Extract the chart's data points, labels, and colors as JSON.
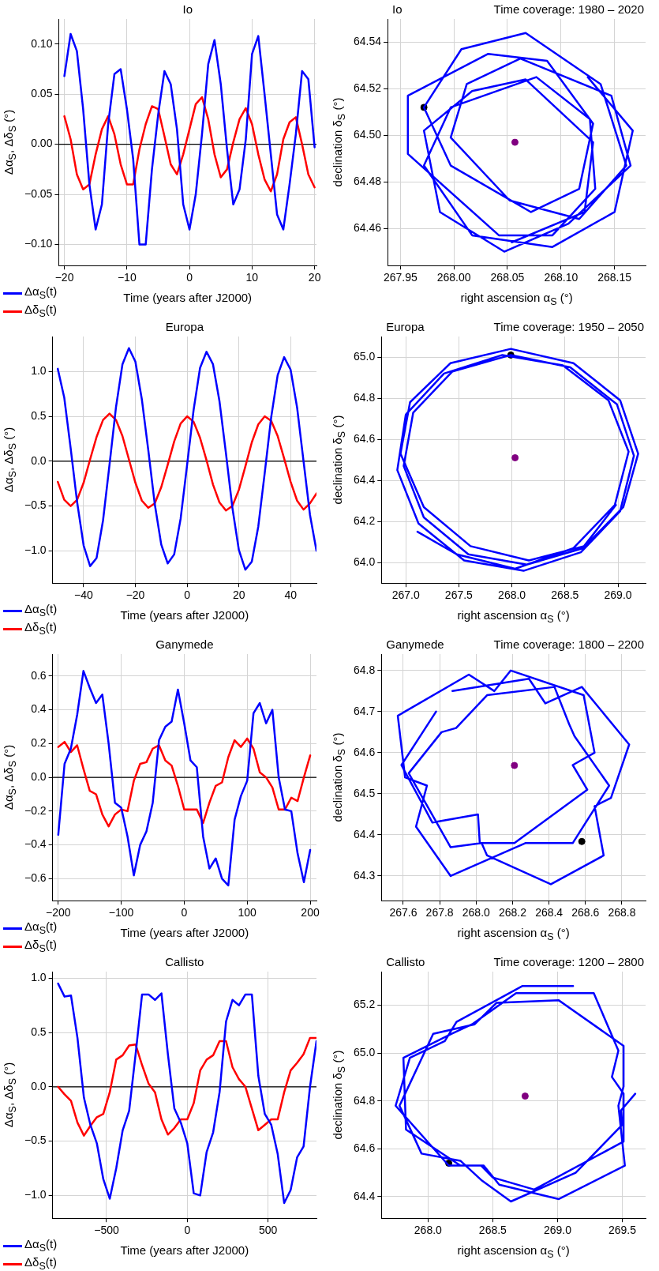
{
  "chart_data": [
    {
      "type": "line",
      "title": "Io",
      "xlabel": "Time (years after J2000)",
      "ylabel": "Δα$_{S}$, Δδ$_{S}$ (°)",
      "legend": "bottom left",
      "grid": true,
      "xlim": [
        -20.9,
        20.3
      ],
      "ylim": [
        -0.121,
        0.125
      ],
      "xticks": [
        {
          "value": -20,
          "label": "−20"
        },
        {
          "value": -10,
          "label": "−10"
        },
        0,
        10,
        20
      ],
      "yticks": [
        {
          "value": -0.1,
          "label": "−0.10"
        },
        {
          "value": -0.05,
          "label": "−0.05"
        },
        {
          "value": 0,
          "label": "0.00"
        },
        {
          "value": 0.05,
          "label": "0.05"
        },
        {
          "value": 0.1,
          "label": "0.10"
        }
      ],
      "ref_lines": [
        {
          "axis": "y",
          "value": 0,
          "color": "#000000"
        }
      ],
      "x": [
        -20,
        -19,
        -18,
        -17,
        -16,
        -15,
        -14,
        -13,
        -12,
        -11,
        -10,
        -9,
        -8,
        -7,
        -6,
        -5,
        -4,
        -3,
        -2,
        -1,
        0,
        1,
        2,
        3,
        4,
        5,
        6,
        7,
        8,
        9,
        10,
        11,
        12,
        13,
        14,
        15,
        16,
        17,
        18,
        19,
        20
      ],
      "series": [
        {
          "name": "Δα$_{S}$(t)",
          "color": "#0000ff",
          "values": [
            0.068,
            0.11,
            0.093,
            0.035,
            -0.04,
            -0.085,
            -0.06,
            0.02,
            0.07,
            0.075,
            0.035,
            -0.015,
            -0.1,
            -0.1,
            -0.025,
            0.03,
            0.073,
            0.06,
            0.015,
            -0.06,
            -0.085,
            -0.05,
            0.01,
            0.08,
            0.104,
            0.06,
            -0.005,
            -0.06,
            -0.045,
            0.005,
            0.09,
            0.108,
            0.05,
            -0.01,
            -0.07,
            -0.085,
            -0.04,
            0.01,
            0.073,
            0.065,
            -0.003
          ]
        },
        {
          "name": "Δδ$_{S}$(t)",
          "color": "#ff0000",
          "values": [
            0.028,
            0.005,
            -0.03,
            -0.045,
            -0.04,
            -0.01,
            0.015,
            0.028,
            0.01,
            -0.02,
            -0.04,
            -0.04,
            -0.005,
            0.02,
            0.038,
            0.035,
            0.008,
            -0.02,
            -0.03,
            -0.01,
            0.015,
            0.04,
            0.047,
            0.025,
            -0.01,
            -0.033,
            -0.025,
            0.002,
            0.025,
            0.036,
            0.02,
            -0.01,
            -0.035,
            -0.047,
            -0.03,
            0.005,
            0.022,
            0.027,
            0,
            -0.03,
            -0.043
          ]
        }
      ]
    },
    {
      "type": "line",
      "title": "Io",
      "xlabel": "right ascension α$_{S}$ (°)",
      "ylabel": "declination δ$_{S}$ (°)",
      "grid": true,
      "annotations": [
        "Time coverage: 1980 – 2020"
      ],
      "xlim": [
        267.938,
        268.179
      ],
      "ylim": [
        64.444,
        64.55
      ],
      "xticks": [
        267.95,
        {
          "value": 268,
          "label": "268.00"
        },
        268.05,
        {
          "value": 268.1,
          "label": "268.10"
        },
        268.15
      ],
      "yticks": [
        64.46,
        64.48,
        {
          "value": 64.5,
          "label": "64.50"
        },
        64.52,
        64.54
      ],
      "series": [
        {
          "color": "#0000ff",
          "x": [
            268.125,
            268.167,
            268.15,
            268.092,
            268.017,
            267.972,
            267.997,
            268.077,
            268.127,
            268.132,
            268.092,
            268.042,
            267.957,
            267.957,
            268.032,
            268.087,
            268.13,
            268.117,
            268.072,
            267.997,
            267.972,
            268.007,
            268.067,
            268.137,
            268.161,
            268.117,
            268.052,
            267.997,
            268.012,
            268.062,
            268.147,
            268.165,
            268.107,
            268.047,
            267.987,
            267.972,
            268.017,
            268.067,
            268.13,
            268.122,
            268.054
          ],
          "values": [
            64.525,
            64.502,
            64.467,
            64.452,
            64.457,
            64.487,
            64.512,
            64.525,
            64.507,
            64.477,
            64.457,
            64.457,
            64.492,
            64.517,
            64.535,
            64.532,
            64.505,
            64.477,
            64.467,
            64.487,
            64.512,
            64.537,
            64.544,
            64.522,
            64.487,
            64.464,
            64.472,
            64.499,
            64.522,
            64.533,
            64.517,
            64.487,
            64.462,
            64.45,
            64.467,
            64.502,
            64.519,
            64.524,
            64.497,
            64.467,
            64.454
          ]
        },
        {
          "type": "scatter",
          "marker": "circle",
          "color": "#000000",
          "x": [
            267.972
          ],
          "values": [
            64.512
          ]
        },
        {
          "type": "scatter",
          "marker": "circle",
          "color": "#800080",
          "x": [
            268.057
          ],
          "values": [
            64.497
          ]
        }
      ]
    },
    {
      "type": "line",
      "title": "Europa",
      "xlabel": "Time (years after J2000)",
      "ylabel": "Δα$_{S}$, Δδ$_{S}$ (°)",
      "legend": "bottom left",
      "grid": true,
      "xlim": [
        -52,
        50
      ],
      "ylim": [
        -1.36,
        1.39
      ],
      "xticks": [
        {
          "value": -40,
          "label": "−40"
        },
        {
          "value": -20,
          "label": "−20"
        },
        0,
        20,
        40
      ],
      "yticks": [
        {
          "value": -1,
          "label": "−1.0"
        },
        {
          "value": -0.5,
          "label": "−0.5"
        },
        {
          "value": 0,
          "label": "0.0"
        },
        0.5,
        {
          "value": 1,
          "label": "1.0"
        }
      ],
      "ref_lines": [
        {
          "axis": "y",
          "value": 0,
          "color": "#000000"
        }
      ],
      "x": [
        -50,
        -47.5,
        -45,
        -42.5,
        -40,
        -37.5,
        -35,
        -32.5,
        -30,
        -27.5,
        -25,
        -22.5,
        -20,
        -17.5,
        -15,
        -12.5,
        -10,
        -7.5,
        -5,
        -2.5,
        0,
        2.5,
        5,
        7.5,
        10,
        12.5,
        15,
        17.5,
        20,
        22.5,
        25,
        27.5,
        30,
        32.5,
        35,
        37.5,
        40,
        42.5,
        45,
        47.5,
        50
      ],
      "series": [
        {
          "name": "Δα$_{S}$(t)",
          "color": "#0000ff",
          "values": [
            1.03,
            0.71,
            0.14,
            -0.46,
            -0.94,
            -1.17,
            -1.08,
            -0.66,
            -0.04,
            0.6,
            1.08,
            1.26,
            1.11,
            0.69,
            0.12,
            -0.48,
            -0.93,
            -1.14,
            -1.04,
            -0.64,
            -0.04,
            0.57,
            1.04,
            1.22,
            1.08,
            0.67,
            0.09,
            -0.52,
            -0.99,
            -1.21,
            -1.12,
            -0.73,
            -0.13,
            0.49,
            0.96,
            1.16,
            1.02,
            0.6,
            0,
            -0.6,
            -1
          ]
        },
        {
          "name": "Δδ$_{S}$(t)",
          "color": "#ff0000",
          "values": [
            -0.23,
            -0.43,
            -0.5,
            -0.43,
            -0.24,
            0.02,
            0.27,
            0.46,
            0.53,
            0.46,
            0.28,
            0.02,
            -0.24,
            -0.44,
            -0.52,
            -0.47,
            -0.29,
            -0.04,
            0.22,
            0.42,
            0.5,
            0.44,
            0.26,
            0.01,
            -0.26,
            -0.46,
            -0.55,
            -0.5,
            -0.32,
            -0.06,
            0.21,
            0.41,
            0.5,
            0.45,
            0.28,
            0.03,
            -0.23,
            -0.44,
            -0.54,
            -0.47,
            -0.36
          ]
        }
      ]
    },
    {
      "type": "line",
      "title": "Europa",
      "xlabel": "right ascension α$_{S}$ (°)",
      "ylabel": "declination δ$_{S}$ (°)",
      "grid": true,
      "annotations": [
        "Time coverage: 1950 – 2050"
      ],
      "xlim": [
        266.77,
        269.26
      ],
      "ylim": [
        63.9,
        65.1
      ],
      "xticks": [
        {
          "value": 267,
          "label": "267.0"
        },
        267.5,
        {
          "value": 268,
          "label": "268.0"
        },
        268.5,
        {
          "value": 269,
          "label": "269.0"
        }
      ],
      "yticks": [
        {
          "value": 64,
          "label": "64.0"
        },
        64.2,
        64.4,
        64.6,
        64.8,
        {
          "value": 65,
          "label": "65.0"
        }
      ],
      "series": [
        {
          "color": "#0000ff",
          "x": [
            268.98,
            268.68,
            268.16,
            267.61,
            267.17,
            266.95,
            267.04,
            267.42,
            267.99,
            268.58,
            269.02,
            269.19,
            269.05,
            268.67,
            268.14,
            267.59,
            267.17,
            266.98,
            267.07,
            267.44,
            267.99,
            268.55,
            268.99,
            269.15,
            269.02,
            268.65,
            268.11,
            267.55,
            267.12,
            266.92,
            267,
            267.36,
            267.91,
            268.48,
            268.91,
            269.1,
            268.97,
            268.58,
            268.03,
            267.48,
            267.11
          ],
          "values": [
            64.28,
            64.08,
            64.01,
            64.08,
            64.27,
            64.53,
            64.78,
            64.97,
            65.04,
            64.97,
            64.79,
            64.53,
            64.27,
            64.07,
            63.99,
            64.04,
            64.22,
            64.47,
            64.73,
            64.93,
            65.01,
            64.95,
            64.77,
            64.52,
            64.25,
            64.05,
            63.96,
            64.01,
            64.19,
            64.45,
            64.72,
            64.92,
            65.01,
            64.96,
            64.79,
            64.54,
            64.28,
            64.07,
            63.97,
            64.04,
            64.15
          ]
        },
        {
          "type": "scatter",
          "marker": "circle",
          "color": "#000000",
          "x": [
            267.99
          ],
          "values": [
            65.01
          ]
        },
        {
          "type": "scatter",
          "marker": "circle",
          "color": "#800080",
          "x": [
            268.03
          ],
          "values": [
            64.51
          ]
        }
      ]
    },
    {
      "type": "line",
      "title": "Ganymede",
      "xlabel": "Time (years after J2000)",
      "ylabel": "Δα$_{S}$, Δδ$_{S}$ (°)",
      "legend": "bottom left",
      "grid": true,
      "xlim": [
        -209,
        210
      ],
      "ylim": [
        -0.73,
        0.73
      ],
      "xticks": [
        {
          "value": -200,
          "label": "−200"
        },
        {
          "value": -100,
          "label": "−100"
        },
        0,
        100,
        200
      ],
      "yticks": [
        {
          "value": -0.6,
          "label": "−0.6"
        },
        {
          "value": -0.4,
          "label": "−0.4"
        },
        {
          "value": -0.2,
          "label": "−0.2"
        },
        {
          "value": 0,
          "label": "0.0"
        },
        0.2,
        0.4,
        0.6
      ],
      "ref_lines": [
        {
          "axis": "y",
          "value": 0,
          "color": "#000000"
        }
      ],
      "x": [
        -200,
        -190,
        -180,
        -170,
        -160,
        -150,
        -140,
        -130,
        -120,
        -110,
        -100,
        -90,
        -80,
        -70,
        -60,
        -50,
        -40,
        -30,
        -20,
        -10,
        0,
        10,
        20,
        30,
        40,
        50,
        60,
        70,
        80,
        90,
        100,
        110,
        120,
        130,
        140,
        150,
        160,
        170,
        180,
        190,
        200
      ],
      "series": [
        {
          "name": "Δα$_{S}$(t)",
          "color": "#0000ff",
          "values": [
            -0.34,
            0.08,
            0.17,
            0.37,
            0.63,
            0.53,
            0.44,
            0.49,
            0.2,
            -0.15,
            -0.18,
            -0.35,
            -0.58,
            -0.4,
            -0.32,
            -0.15,
            0.22,
            0.3,
            0.33,
            0.52,
            0.32,
            0.1,
            0.06,
            -0.35,
            -0.54,
            -0.48,
            -0.6,
            -0.64,
            -0.25,
            -0.11,
            -0.02,
            0.38,
            0.44,
            0.32,
            0.4,
            0,
            -0.19,
            -0.2,
            -0.45,
            -0.62,
            -0.43
          ]
        },
        {
          "name": "Δδ$_{S}$(t)",
          "color": "#ff0000",
          "values": [
            0.18,
            0.21,
            0.15,
            0.19,
            0.05,
            -0.08,
            -0.1,
            -0.22,
            -0.29,
            -0.22,
            -0.19,
            -0.2,
            -0.02,
            0.08,
            0.09,
            0.17,
            0.19,
            0.1,
            0.07,
            -0.05,
            -0.19,
            -0.19,
            -0.19,
            -0.27,
            -0.15,
            -0.05,
            -0.03,
            0.12,
            0.22,
            0.18,
            0.23,
            0.17,
            0.03,
            0,
            -0.06,
            -0.19,
            -0.19,
            -0.12,
            -0.14,
            0,
            0.13
          ]
        }
      ]
    },
    {
      "type": "line",
      "title": "Ganymede",
      "xlabel": "right ascension α$_{S}$ (°)",
      "ylabel": "declination δ$_{S}$ (°)",
      "grid": true,
      "annotations": [
        "Time coverage: 1800 – 2200"
      ],
      "xlim": [
        267.48,
        268.93
      ],
      "ylim": [
        64.24,
        64.84
      ],
      "xticks": [
        267.6,
        267.8,
        {
          "value": 268,
          "label": "268.0"
        },
        268.2,
        268.4,
        268.6,
        268.8
      ],
      "yticks": [
        64.3,
        64.4,
        64.5,
        64.6,
        64.7,
        64.8
      ],
      "series": [
        {
          "color": "#0000ff",
          "x": [
            267.87,
            268.29,
            268.38,
            268.58,
            268.84,
            268.74,
            268.65,
            268.7,
            268.41,
            268.06,
            268.03,
            267.86,
            267.63,
            267.81,
            267.89,
            268.06,
            268.43,
            268.51,
            268.54,
            268.73,
            268.53,
            268.31,
            268.27,
            267.86,
            267.67,
            267.73,
            267.61,
            267.57,
            267.96,
            268.1,
            268.19,
            268.59,
            268.65,
            268.53,
            268.61,
            268.21,
            268.02,
            268.01,
            267.76,
            267.59,
            267.78
          ],
          "values": [
            64.75,
            64.78,
            64.72,
            64.76,
            64.62,
            64.49,
            64.47,
            64.35,
            64.28,
            64.35,
            64.38,
            64.37,
            64.55,
            64.65,
            64.66,
            64.74,
            64.76,
            64.67,
            64.64,
            64.52,
            64.38,
            64.38,
            64.38,
            64.3,
            64.42,
            64.52,
            64.54,
            64.69,
            64.79,
            64.75,
            64.8,
            64.74,
            64.6,
            64.57,
            64.51,
            64.38,
            64.38,
            64.45,
            64.43,
            64.57,
            64.7
          ]
        },
        {
          "type": "scatter",
          "marker": "circle",
          "color": "#000000",
          "x": [
            268.58
          ],
          "values": [
            64.384
          ]
        },
        {
          "type": "scatter",
          "marker": "circle",
          "color": "#800080",
          "x": [
            268.21
          ],
          "values": [
            64.569
          ]
        }
      ]
    },
    {
      "type": "line",
      "title": "Callisto",
      "xlabel": "Time (years after J2000)",
      "ylabel": "Δα$_{S}$, Δδ$_{S}$ (°)",
      "legend": "bottom left",
      "grid": true,
      "xlim": [
        -834,
        800
      ],
      "ylim": [
        -1.21,
        1.06
      ],
      "xticks": [
        {
          "value": -500,
          "label": "−500"
        },
        0,
        500
      ],
      "yticks": [
        {
          "value": -1,
          "label": "−1.0"
        },
        {
          "value": -0.5,
          "label": "−0.5"
        },
        {
          "value": 0,
          "label": "0.0"
        },
        0.5,
        {
          "value": 1,
          "label": "1.0"
        }
      ],
      "ref_lines": [
        {
          "axis": "y",
          "value": 0,
          "color": "#000000"
        }
      ],
      "x": [
        -800,
        -760,
        -720,
        -680,
        -640,
        -600,
        -560,
        -520,
        -480,
        -440,
        -400,
        -360,
        -320,
        -280,
        -240,
        -200,
        -160,
        -120,
        -80,
        -40,
        0,
        40,
        80,
        120,
        160,
        200,
        240,
        280,
        320,
        360,
        400,
        440,
        480,
        520,
        560,
        600,
        640,
        680,
        720,
        760,
        800
      ],
      "series": [
        {
          "name": "Δα$_{S}$(t)",
          "color": "#0000ff",
          "values": [
            0.95,
            0.83,
            0.84,
            0.45,
            -0.1,
            -0.35,
            -0.52,
            -0.85,
            -1.03,
            -0.75,
            -0.4,
            -0.22,
            0.3,
            0.85,
            0.85,
            0.8,
            0.86,
            0.3,
            -0.2,
            -0.33,
            -0.52,
            -0.98,
            -1,
            -0.6,
            -0.42,
            -0.05,
            0.6,
            0.8,
            0.75,
            0.85,
            0.85,
            0.1,
            -0.25,
            -0.35,
            -0.62,
            -1.07,
            -0.95,
            -0.65,
            -0.55,
            0,
            0.42
          ]
        },
        {
          "name": "Δδ$_{S}$(t)",
          "color": "#ff0000",
          "values": [
            0,
            -0.07,
            -0.13,
            -0.33,
            -0.45,
            -0.36,
            -0.28,
            -0.25,
            -0.05,
            0.25,
            0.29,
            0.38,
            0.39,
            0.2,
            0.03,
            -0.05,
            -0.3,
            -0.44,
            -0.38,
            -0.3,
            -0.3,
            -0.15,
            0.15,
            0.25,
            0.29,
            0.42,
            0.42,
            0.18,
            0.07,
            0,
            -0.2,
            -0.4,
            -0.35,
            -0.3,
            -0.3,
            -0.05,
            0.15,
            0.22,
            0.3,
            0.45,
            0.45
          ]
        }
      ]
    },
    {
      "type": "line",
      "title": "Callisto",
      "xlabel": "right ascension α$_{S}$ (°)",
      "ylabel": "declination δ$_{S}$ (°)",
      "grid": true,
      "annotations": [
        "Time coverage: 1200 – 2800"
      ],
      "xlim": [
        267.64,
        269.68
      ],
      "ylim": [
        64.31,
        65.34
      ],
      "xticks": [
        {
          "value": 268,
          "label": "268.0"
        },
        268.5,
        {
          "value": 269,
          "label": "269.0"
        },
        269.5
      ],
      "yticks": [
        64.4,
        64.6,
        64.8,
        {
          "value": 65,
          "label": "65.0"
        },
        65.2
      ],
      "series": [
        {
          "color": "#0000ff",
          "x": [
            269.6,
            269.49,
            269.5,
            269.14,
            268.64,
            268.41,
            268.25,
            267.95,
            267.78,
            268.04,
            268.36,
            268.53,
            269.01,
            269.51,
            269.51,
            269.47,
            269.52,
            269.01,
            268.55,
            268.43,
            268.25,
            267.83,
            267.81,
            268.18,
            268.34,
            268.68,
            269.28,
            269.47,
            269.42,
            269.51,
            269.51,
            268.82,
            268.5,
            268.41,
            268.16,
            267.75,
            267.86,
            268.13,
            268.22,
            268.73,
            269.12
          ],
          "values": [
            64.83,
            64.76,
            64.7,
            64.5,
            64.38,
            64.47,
            64.55,
            64.58,
            64.78,
            65.08,
            65.12,
            65.21,
            65.22,
            65.03,
            64.86,
            64.78,
            64.53,
            64.39,
            64.45,
            64.53,
            64.53,
            64.68,
            64.98,
            65.08,
            65.12,
            65.25,
            65.25,
            65.01,
            64.9,
            64.83,
            64.63,
            64.43,
            64.48,
            64.53,
            64.53,
            64.78,
            64.98,
            65.05,
            65.13,
            65.28,
            65.28
          ]
        },
        {
          "type": "scatter",
          "marker": "circle",
          "color": "#000000",
          "x": [
            268.16
          ],
          "values": [
            64.54
          ]
        },
        {
          "type": "scatter",
          "marker": "circle",
          "color": "#800080",
          "x": [
            268.75
          ],
          "values": [
            64.82
          ]
        }
      ]
    }
  ]
}
